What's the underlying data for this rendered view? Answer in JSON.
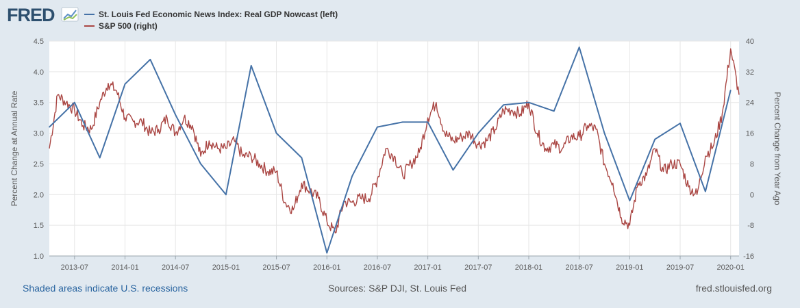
{
  "brand": {
    "name": "FRED",
    "logo_icon": "chart-line-icon"
  },
  "footer": {
    "recession_note": "Shaded areas indicate U.S. recessions",
    "sources": "Sources: S&P DJI, St. Louis Fed",
    "site": "fred.stlouisfed.org"
  },
  "colors": {
    "background": "#e1e9f0",
    "plot": "#ffffff",
    "gdp": "#4572a7",
    "sp500": "#aa4643",
    "link": "#2a65a0"
  },
  "chart_data": {
    "type": "line",
    "title": "",
    "legend_position": "top-left",
    "xlabel": "",
    "ylabel": "Percent Change at Annual Rate",
    "y2label": "Percent Change from Year Ago",
    "x_ticks": [
      "2013-07",
      "2014-01",
      "2014-07",
      "2015-01",
      "2015-07",
      "2016-01",
      "2016-07",
      "2017-01",
      "2017-07",
      "2018-01",
      "2018-07",
      "2019-01",
      "2019-07",
      "2020-01"
    ],
    "xlim": [
      "2013-04",
      "2020-02"
    ],
    "ylim": [
      1.0,
      4.5
    ],
    "y_ticks": [
      "1.0",
      "1.5",
      "2.0",
      "2.5",
      "3.0",
      "3.5",
      "4.0",
      "4.5"
    ],
    "y2lim": [
      -16,
      40
    ],
    "y2_ticks": [
      "-16",
      "-8",
      "0",
      "8",
      "16",
      "24",
      "32",
      "40"
    ],
    "series": [
      {
        "name": "St. Louis Fed Economic News Index: Real GDP Nowcast (left)",
        "axis": "left",
        "x": [
          "2013-04-01",
          "2013-07-01",
          "2013-10-01",
          "2014-01-01",
          "2014-04-01",
          "2014-07-01",
          "2014-10-01",
          "2015-01-01",
          "2015-04-01",
          "2015-07-01",
          "2015-10-01",
          "2016-01-01",
          "2016-04-01",
          "2016-07-01",
          "2016-10-01",
          "2017-01-01",
          "2017-04-01",
          "2017-07-01",
          "2017-10-01",
          "2018-01-01",
          "2018-04-01",
          "2018-07-01",
          "2018-10-01",
          "2019-01-01",
          "2019-04-01",
          "2019-07-01",
          "2019-10-01",
          "2020-01-01"
        ],
        "values": [
          3.1,
          3.5,
          2.6,
          3.8,
          4.2,
          3.3,
          2.5,
          2.0,
          4.1,
          3.0,
          2.6,
          1.05,
          2.3,
          3.1,
          3.18,
          3.18,
          2.4,
          3.0,
          3.46,
          3.5,
          3.36,
          4.4,
          3.0,
          1.9,
          2.9,
          3.16,
          2.05,
          3.7
        ]
      },
      {
        "name": "S&P 500 (right)",
        "axis": "right",
        "x": [
          "2013-04-01",
          "2013-05-01",
          "2013-06-01",
          "2013-07-01",
          "2013-08-01",
          "2013-09-01",
          "2013-10-01",
          "2013-11-01",
          "2013-12-01",
          "2014-01-01",
          "2014-02-01",
          "2014-03-01",
          "2014-04-01",
          "2014-05-01",
          "2014-06-01",
          "2014-07-01",
          "2014-08-01",
          "2014-09-01",
          "2014-10-01",
          "2014-11-01",
          "2014-12-01",
          "2015-01-01",
          "2015-02-01",
          "2015-03-01",
          "2015-04-01",
          "2015-05-01",
          "2015-06-01",
          "2015-07-01",
          "2015-08-01",
          "2015-09-01",
          "2015-10-01",
          "2015-11-01",
          "2015-12-01",
          "2016-01-01",
          "2016-02-01",
          "2016-03-01",
          "2016-04-01",
          "2016-05-01",
          "2016-06-01",
          "2016-07-01",
          "2016-08-01",
          "2016-09-01",
          "2016-10-01",
          "2016-11-01",
          "2016-12-01",
          "2017-01-01",
          "2017-02-01",
          "2017-03-01",
          "2017-04-01",
          "2017-05-01",
          "2017-06-01",
          "2017-07-01",
          "2017-08-01",
          "2017-09-01",
          "2017-10-01",
          "2017-11-01",
          "2017-12-01",
          "2018-01-01",
          "2018-02-01",
          "2018-03-01",
          "2018-04-01",
          "2018-05-01",
          "2018-06-01",
          "2018-07-01",
          "2018-08-01",
          "2018-09-01",
          "2018-10-01",
          "2018-11-01",
          "2018-12-01",
          "2019-01-01",
          "2019-02-01",
          "2019-03-01",
          "2019-04-01",
          "2019-05-01",
          "2019-06-01",
          "2019-07-01",
          "2019-08-01",
          "2019-09-01",
          "2019-10-01",
          "2019-11-01",
          "2019-12-01",
          "2020-01-01",
          "2020-02-01"
        ],
        "values": [
          12,
          26,
          24,
          22,
          18,
          17,
          24,
          29,
          27,
          20,
          19,
          19,
          16,
          17,
          20,
          16,
          20,
          18,
          10,
          14,
          12,
          12,
          14,
          10,
          10,
          8,
          6,
          6,
          -2,
          -4,
          3,
          1,
          -1,
          -7,
          -10,
          -2,
          -2,
          -1,
          -1,
          4,
          12,
          10,
          5,
          8,
          11,
          20,
          24,
          16,
          14,
          15,
          16,
          13,
          14,
          17,
          22,
          22,
          21,
          24,
          16,
          12,
          13,
          12,
          15,
          15,
          18,
          17,
          8,
          3,
          -6,
          -8,
          3,
          5,
          12,
          6,
          8,
          8,
          2,
          0,
          10,
          13,
          21,
          38,
          26
        ]
      }
    ]
  }
}
